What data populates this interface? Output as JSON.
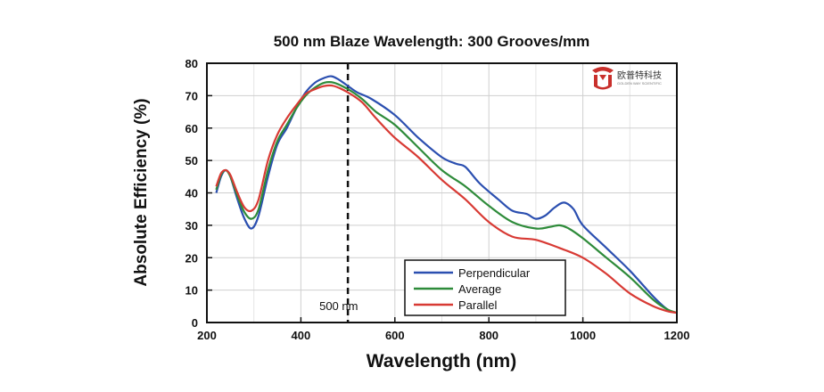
{
  "chart_data": {
    "type": "line",
    "title": "500 nm Blaze Wavelength: 300 Grooves/mm",
    "xlabel": "Wavelength (nm)",
    "ylabel": "Absolute Efficiency (%)",
    "xlim": [
      200,
      1200
    ],
    "ylim": [
      0,
      80
    ],
    "xticks": [
      200,
      400,
      600,
      800,
      1000,
      1200
    ],
    "yticks": [
      0,
      10,
      20,
      30,
      40,
      50,
      60,
      70,
      80
    ],
    "grid": true,
    "legend_position": "bottom-center",
    "reference_line": {
      "x": 500,
      "label": "500 nm",
      "style": "dashed"
    },
    "series": [
      {
        "name": "Perpendicular",
        "color": "#2b4fb0",
        "points": [
          [
            220,
            40
          ],
          [
            230,
            45
          ],
          [
            240,
            47
          ],
          [
            250,
            45
          ],
          [
            265,
            38
          ],
          [
            280,
            32
          ],
          [
            295,
            29
          ],
          [
            310,
            33
          ],
          [
            330,
            45
          ],
          [
            350,
            55
          ],
          [
            370,
            60
          ],
          [
            390,
            66
          ],
          [
            410,
            71
          ],
          [
            430,
            74
          ],
          [
            450,
            75.5
          ],
          [
            465,
            76
          ],
          [
            480,
            75
          ],
          [
            500,
            73
          ],
          [
            520,
            71
          ],
          [
            550,
            69
          ],
          [
            600,
            64
          ],
          [
            650,
            57
          ],
          [
            700,
            51
          ],
          [
            730,
            49
          ],
          [
            750,
            48
          ],
          [
            780,
            43
          ],
          [
            820,
            38
          ],
          [
            850,
            34.5
          ],
          [
            880,
            33.5
          ],
          [
            900,
            32
          ],
          [
            920,
            33
          ],
          [
            940,
            35.5
          ],
          [
            960,
            37
          ],
          [
            980,
            35
          ],
          [
            1000,
            30
          ],
          [
            1050,
            23
          ],
          [
            1100,
            16
          ],
          [
            1150,
            8
          ],
          [
            1180,
            4
          ],
          [
            1200,
            3
          ]
        ]
      },
      {
        "name": "Average",
        "color": "#2e8b3a",
        "points": [
          [
            220,
            41
          ],
          [
            230,
            45.5
          ],
          [
            240,
            47
          ],
          [
            250,
            45
          ],
          [
            265,
            39
          ],
          [
            280,
            34
          ],
          [
            295,
            32
          ],
          [
            310,
            35
          ],
          [
            330,
            47
          ],
          [
            350,
            56
          ],
          [
            370,
            61
          ],
          [
            390,
            66
          ],
          [
            410,
            70
          ],
          [
            430,
            72.5
          ],
          [
            450,
            74
          ],
          [
            470,
            74
          ],
          [
            500,
            72
          ],
          [
            530,
            69
          ],
          [
            560,
            65
          ],
          [
            600,
            61
          ],
          [
            650,
            54
          ],
          [
            700,
            47
          ],
          [
            750,
            42
          ],
          [
            800,
            36
          ],
          [
            850,
            31
          ],
          [
            900,
            29
          ],
          [
            930,
            29.5
          ],
          [
            950,
            30
          ],
          [
            970,
            29
          ],
          [
            1000,
            26
          ],
          [
            1050,
            20
          ],
          [
            1100,
            14
          ],
          [
            1150,
            7
          ],
          [
            1180,
            4
          ],
          [
            1200,
            3
          ]
        ]
      },
      {
        "name": "Parallel",
        "color": "#d83a34",
        "points": [
          [
            220,
            42
          ],
          [
            230,
            46
          ],
          [
            240,
            47
          ],
          [
            250,
            45.5
          ],
          [
            265,
            40
          ],
          [
            280,
            35.5
          ],
          [
            295,
            34.5
          ],
          [
            310,
            38
          ],
          [
            330,
            50
          ],
          [
            350,
            58
          ],
          [
            370,
            63
          ],
          [
            390,
            67
          ],
          [
            410,
            70.5
          ],
          [
            430,
            72
          ],
          [
            450,
            73
          ],
          [
            470,
            73
          ],
          [
            500,
            71
          ],
          [
            530,
            68
          ],
          [
            560,
            63
          ],
          [
            600,
            57
          ],
          [
            650,
            51
          ],
          [
            700,
            44
          ],
          [
            750,
            38
          ],
          [
            800,
            31
          ],
          [
            850,
            26.5
          ],
          [
            900,
            25.5
          ],
          [
            950,
            23
          ],
          [
            1000,
            20
          ],
          [
            1050,
            15
          ],
          [
            1100,
            9
          ],
          [
            1150,
            5
          ],
          [
            1180,
            3.5
          ],
          [
            1200,
            3
          ]
        ]
      }
    ]
  },
  "logo": {
    "text_cn": "欧普特科技",
    "text_en": "GOLDEN WAY SCIENTIFIC",
    "color": "#c9302c"
  }
}
